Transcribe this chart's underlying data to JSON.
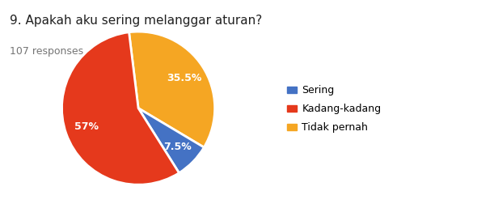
{
  "title": "9. Apakah aku sering melanggar aturan?",
  "subtitle": "107 responses",
  "labels": [
    "Sering",
    "Kadang-kadang",
    "Tidak pernah"
  ],
  "values": [
    7.5,
    57.0,
    35.5
  ],
  "colors": [
    "#4472c4",
    "#e5391c",
    "#f5a623"
  ],
  "legend_labels": [
    "Sering",
    "Kadang-kadang",
    "Tidak pernah"
  ],
  "title_fontsize": 11,
  "subtitle_fontsize": 9,
  "background_color": "#ffffff",
  "startangle": 97,
  "pct_colors": [
    "#ffffff",
    "#ffffff",
    "#ffffff"
  ],
  "pct_fontsize": 9
}
